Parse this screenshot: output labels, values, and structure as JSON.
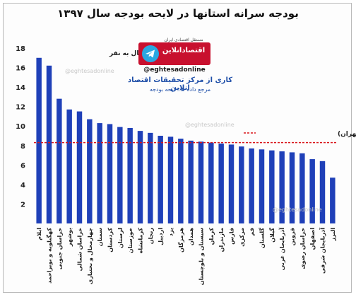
{
  "title": "بودجه سرانه استانها در لایحه بودجه سال ۱۳۹۷",
  "logo": {
    "brand_name": "اقتصادآنلاین",
    "tagline": "مستقل اقتصادی ایران",
    "handle": "@eghtesadonline",
    "icon": "telegram-icon"
  },
  "credit": {
    "line1": "کاری از مرکز تحقیقات اقتصاد انلاین",
    "line2": "مرجع داده ها: لایحه بودجه"
  },
  "watermark": "@eghtesadonline",
  "colors": {
    "bar": "#1f40b8",
    "reference": "#d9161b",
    "title": "#111111",
    "credit": "#1f4fa8",
    "logo_bg": "#c8102e"
  },
  "chart_data": {
    "type": "bar",
    "unit_label": "میلیون ریال به نفر",
    "ylim": [
      0,
      18
    ],
    "yticks": [
      2,
      4,
      6,
      8,
      10,
      12,
      14,
      16,
      18
    ],
    "grid": false,
    "categories": [
      "ایلام",
      "کهگیلویه و بویراحمد",
      "خراسان جنوبی",
      "بوشهر",
      "خراسان شمالی",
      "چهارمحال و بختیاری",
      "سمنان",
      "کردستان",
      "لرستان",
      "خوزستان",
      "کرمانشاه",
      "زنجان",
      "اردبیل",
      "یزد",
      "هرمزگان",
      "همدان",
      "سیستان و بلوچستان",
      "کرمان",
      "مازندران",
      "فارس",
      "مرکزی",
      "قم",
      "گلستان",
      "گیلان",
      "آذربایجان غربی",
      "قزوین",
      "خراسان رضوی",
      "اصفهان",
      "آذربایجان شرقی",
      "البرز"
    ],
    "values": [
      17.0,
      16.2,
      12.8,
      11.7,
      11.5,
      10.7,
      10.3,
      10.2,
      9.9,
      9.8,
      9.5,
      9.3,
      9.0,
      8.9,
      8.7,
      8.5,
      8.4,
      8.3,
      8.2,
      8.1,
      7.9,
      7.7,
      7.6,
      7.5,
      7.4,
      7.3,
      7.2,
      6.6,
      6.4,
      4.7
    ],
    "reference_line": {
      "label": "کل استانها (بدون تهران)",
      "value": 8.3
    }
  }
}
